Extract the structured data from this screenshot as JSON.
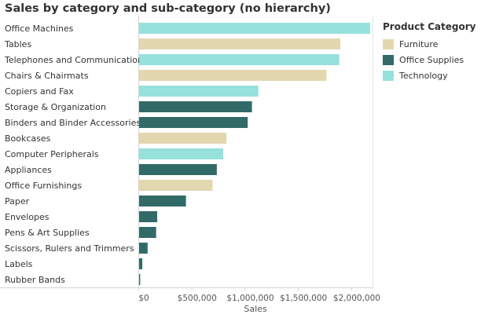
{
  "chart_data": {
    "type": "bar",
    "orientation": "horizontal",
    "title": "Sales by category and sub-category (no hierarchy)",
    "xlabel": "Sales",
    "ylabel": "",
    "xlim": [
      0,
      2200000
    ],
    "xticks": [
      0,
      500000,
      1000000,
      1500000,
      2000000
    ],
    "xtick_labels": [
      "$0",
      "$500,000",
      "$1,000,000",
      "$1,500,000",
      "$2,000,000"
    ],
    "legend_title": "Product Category",
    "legend_position": "right",
    "legend": [
      {
        "name": "Furniture",
        "color": "#e3d7b0"
      },
      {
        "name": "Office Supplies",
        "color": "#326a68"
      },
      {
        "name": "Technology",
        "color": "#96e1dc"
      }
    ],
    "categories": [
      "Office Machines",
      "Tables",
      "Telephones and Communication",
      "Chairs & Chairmats",
      "Copiers and Fax",
      "Storage & Organization",
      "Binders and Binder Accessories",
      "Bookcases",
      "Computer Peripherals",
      "Appliances",
      "Office Furnishings",
      "Paper",
      "Envelopes",
      "Pens & Art Supplies",
      "Scissors, Rulers and Trimmers",
      "Labels",
      "Rubber Bands"
    ],
    "values": [
      2170000,
      1890000,
      1880000,
      1760000,
      1120000,
      1060000,
      1020000,
      820000,
      790000,
      730000,
      690000,
      440000,
      170000,
      160000,
      80000,
      30000,
      10000
    ],
    "groups": [
      "Technology",
      "Furniture",
      "Technology",
      "Furniture",
      "Technology",
      "Office Supplies",
      "Office Supplies",
      "Furniture",
      "Technology",
      "Office Supplies",
      "Furniture",
      "Office Supplies",
      "Office Supplies",
      "Office Supplies",
      "Office Supplies",
      "Office Supplies",
      "Office Supplies"
    ]
  }
}
